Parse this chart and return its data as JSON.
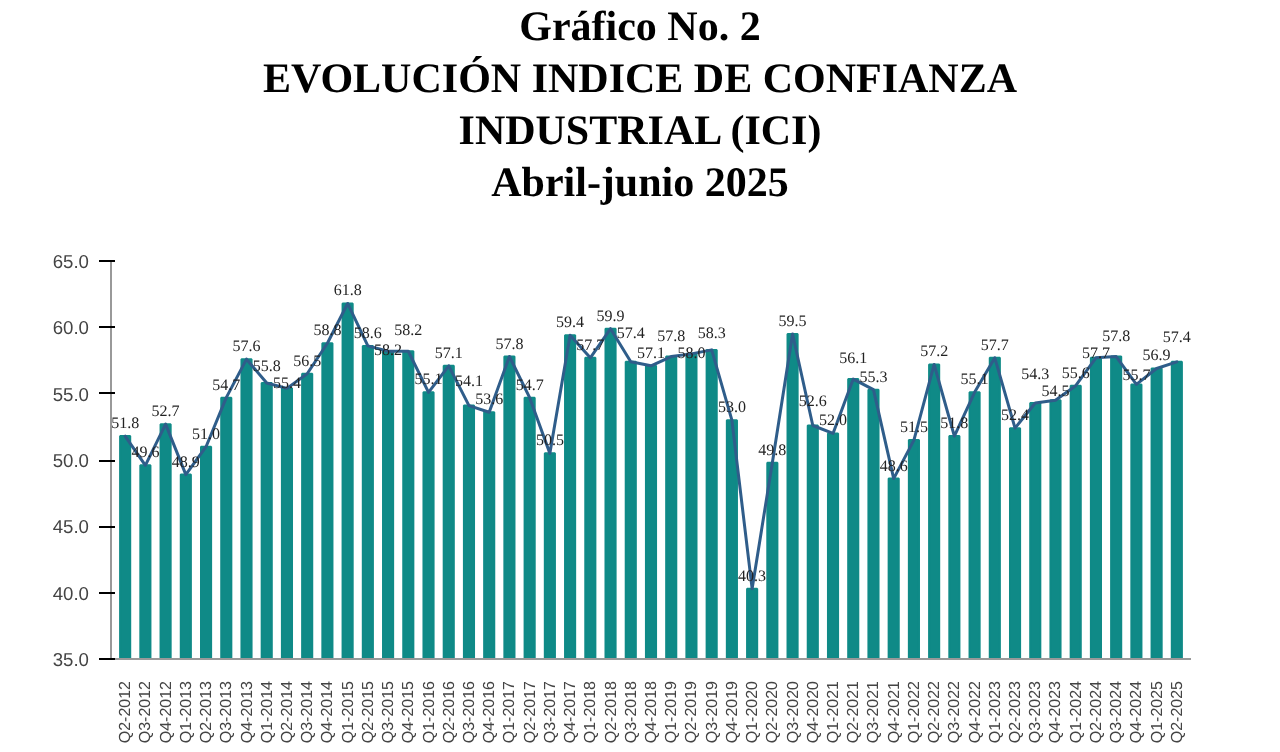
{
  "chart_data": {
    "type": "bar",
    "title": "Gráfico No. 2\nEVOLUCIÓN INDICE DE CONFIANZA\nINDUSTRIAL (ICI)",
    "subtitle": "Abril-junio 2025",
    "categories": [
      "Q2-2012",
      "Q3-2012",
      "Q4-2012",
      "Q1-2013",
      "Q2-2013",
      "Q3-2013",
      "Q4-2013",
      "Q1-2014",
      "Q2-2014",
      "Q3-2014",
      "Q4-2014",
      "Q1-2015",
      "Q2-2015",
      "Q3-2015",
      "Q4-2015",
      "Q1-2016",
      "Q2-2016",
      "Q3-2016",
      "Q4-2016",
      "Q1-2017",
      "Q2-2017",
      "Q3-2017",
      "Q4-2017",
      "Q1-2018",
      "Q2-2018",
      "Q3-2018",
      "Q4-2018",
      "Q1-2019",
      "Q2-2019",
      "Q3-2019",
      "Q4-2019",
      "Q1-2020",
      "Q2-2020",
      "Q3-2020",
      "Q4-2020",
      "Q1-2021",
      "Q2-2021",
      "Q3-2021",
      "Q4-2021",
      "Q1-2022",
      "Q2-2022",
      "Q3-2022",
      "Q4-2022",
      "Q1-2023",
      "Q2-2023",
      "Q3-2023",
      "Q4-2023",
      "Q1-2024",
      "Q2-2024",
      "Q3-2024",
      "Q4-2024",
      "Q1-2025",
      "Q2-2025"
    ],
    "series": [
      {
        "color": "#0f8a87",
        "value_labels": [
          "51.8",
          "49.6",
          "52.7",
          "48.9",
          "51.0",
          "54.7",
          "57.6",
          "55.8",
          "55.4",
          "56.5",
          "58.8",
          "61.8",
          "58.6",
          "58.2",
          "58.2",
          "55.1",
          "57.1",
          "54.1",
          "53.6",
          "57.8",
          "54.7",
          "50.5",
          "59.4",
          "57.7",
          "59.9",
          "57.4",
          "57.1",
          "57.8",
          "58.0",
          "58.3",
          "53.0",
          "40.3",
          "49.8",
          "59.5",
          "52.6",
          "52.0",
          "56.1",
          "55.3",
          "48.6",
          "51.5",
          "57.2",
          "51.8",
          "55.1",
          "57.7",
          "52.4",
          "54.3",
          "54.5",
          "55.6",
          "57.7",
          "57.8",
          "55.7",
          "56.9",
          "57.4"
        ],
        "values": [
          51.8,
          49.6,
          52.7,
          48.9,
          51.0,
          54.7,
          57.6,
          55.8,
          55.4,
          56.5,
          58.8,
          61.8,
          58.6,
          58.2,
          58.2,
          55.1,
          57.1,
          54.1,
          53.6,
          57.8,
          54.7,
          50.5,
          59.4,
          57.7,
          59.9,
          57.4,
          57.1,
          57.8,
          58.0,
          58.3,
          53.0,
          40.3,
          49.8,
          59.5,
          52.6,
          52.0,
          56.1,
          55.3,
          48.6,
          51.5,
          57.2,
          51.8,
          55.1,
          57.7,
          52.4,
          54.3,
          54.5,
          55.6,
          57.7,
          57.8,
          55.7,
          56.9,
          57.4
        ]
      },
      {
        "type": "line",
        "color": "#2f5d8a",
        "values": [
          51.8,
          49.6,
          52.7,
          48.9,
          51.0,
          54.7,
          57.6,
          55.8,
          55.4,
          56.5,
          58.8,
          61.8,
          58.6,
          58.2,
          58.2,
          55.1,
          57.1,
          54.1,
          53.6,
          57.8,
          54.7,
          50.5,
          59.4,
          57.7,
          59.9,
          57.4,
          57.1,
          57.8,
          58.0,
          58.3,
          53.0,
          40.3,
          49.8,
          59.5,
          52.6,
          52.0,
          56.1,
          55.3,
          48.6,
          51.5,
          57.2,
          51.8,
          55.1,
          57.7,
          52.4,
          54.3,
          54.5,
          55.6,
          57.7,
          57.8,
          55.7,
          56.9,
          57.4
        ]
      }
    ],
    "ylim": [
      35,
      65
    ],
    "yticks": [
      {
        "value": 35,
        "label": "35.0"
      },
      {
        "value": 40,
        "label": "40.0"
      },
      {
        "value": 45,
        "label": "45.0"
      },
      {
        "value": 50,
        "label": "50.0"
      },
      {
        "value": 55,
        "label": "55.0"
      },
      {
        "value": 60,
        "label": "60.0"
      },
      {
        "value": 65,
        "label": "65.0"
      }
    ],
    "grid": false,
    "marker": "none"
  }
}
